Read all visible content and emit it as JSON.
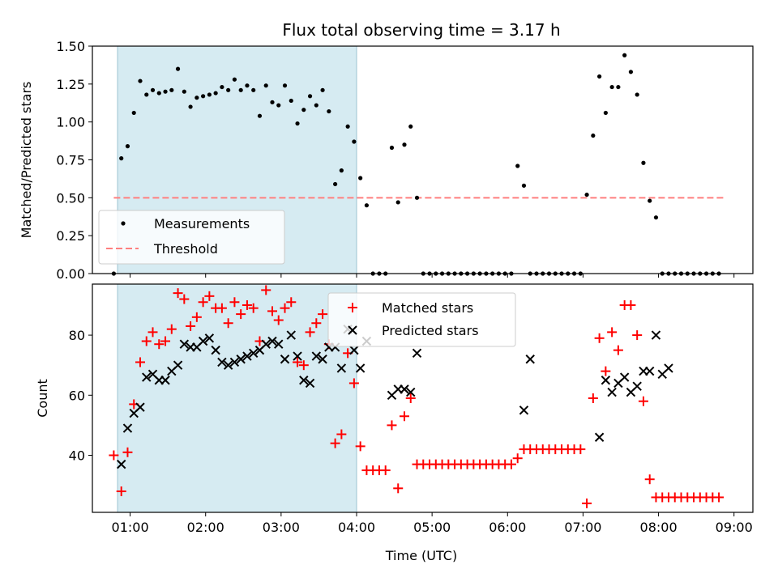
{
  "chart_data": [
    {
      "type": "scatter",
      "title": "Flux total observing time = 3.17 h",
      "ylabel": "Matched/Predicted stars",
      "xlim": [
        "00:30",
        "09:15"
      ],
      "ylim": [
        0,
        1.5
      ],
      "y_ticks": [
        "0.00",
        "0.25",
        "0.50",
        "0.75",
        "1.00",
        "1.25",
        "1.50"
      ],
      "shaded_interval": [
        "00:50",
        "04:00"
      ],
      "shade_color": "#add8e6",
      "legend": {
        "position": "lower-left",
        "entries": [
          "Measurements",
          "Threshold"
        ]
      },
      "threshold": {
        "name": "Threshold",
        "value": 0.5,
        "x": [
          "00:47",
          "08:52"
        ],
        "color": "#ff7f7f"
      },
      "series": [
        {
          "name": "Measurements",
          "color": "#000000",
          "x": [
            "00:47",
            "00:53",
            "00:58",
            "01:03",
            "01:08",
            "01:13",
            "01:18",
            "01:23",
            "01:28",
            "01:33",
            "01:38",
            "01:43",
            "01:48",
            "01:53",
            "01:58",
            "02:03",
            "02:08",
            "02:13",
            "02:18",
            "02:23",
            "02:28",
            "02:33",
            "02:38",
            "02:43",
            "02:48",
            "02:53",
            "02:58",
            "03:03",
            "03:08",
            "03:13",
            "03:18",
            "03:23",
            "03:28",
            "03:33",
            "03:38",
            "03:43",
            "03:48",
            "03:53",
            "03:58",
            "04:03",
            "04:08",
            "04:13",
            "04:18",
            "04:23",
            "04:28",
            "04:33",
            "04:38",
            "04:43",
            "04:48",
            "04:53",
            "04:58",
            "05:03",
            "05:08",
            "05:13",
            "05:18",
            "05:23",
            "05:28",
            "05:33",
            "05:38",
            "05:43",
            "05:48",
            "05:53",
            "05:58",
            "06:03",
            "06:08",
            "06:13",
            "06:18",
            "06:23",
            "06:28",
            "06:33",
            "06:38",
            "06:43",
            "06:48",
            "06:53",
            "06:58",
            "07:03",
            "07:08",
            "07:13",
            "07:18",
            "07:23",
            "07:28",
            "07:33",
            "07:38",
            "07:43",
            "07:48",
            "07:53",
            "07:58",
            "08:03",
            "08:08",
            "08:13",
            "08:18",
            "08:23",
            "08:28",
            "08:33",
            "08:38",
            "08:43",
            "08:48"
          ],
          "y": [
            0.0,
            0.76,
            0.84,
            1.06,
            1.27,
            1.18,
            1.21,
            1.19,
            1.2,
            1.21,
            1.35,
            1.2,
            1.1,
            1.16,
            1.17,
            1.18,
            1.19,
            1.23,
            1.21,
            1.28,
            1.21,
            1.24,
            1.21,
            1.04,
            1.24,
            1.13,
            1.11,
            1.24,
            1.14,
            0.99,
            1.08,
            1.17,
            1.11,
            1.21,
            1.07,
            0.59,
            0.68,
            0.97,
            0.87,
            0.63,
            0.45,
            0.0,
            0.0,
            0.0,
            0.83,
            0.47,
            0.85,
            0.97,
            0.5,
            0.0,
            0.0,
            0.0,
            0.0,
            0.0,
            0.0,
            0.0,
            0.0,
            0.0,
            0.0,
            0.0,
            0.0,
            0.0,
            0.0,
            0.0,
            0.71,
            0.58,
            0.0,
            0.0,
            0.0,
            0.0,
            0.0,
            0.0,
            0.0,
            0.0,
            0.0,
            0.52,
            0.91,
            1.3,
            1.06,
            1.23,
            1.23,
            1.44,
            1.33,
            1.18,
            0.73,
            0.48,
            0.37,
            0.0,
            0.0,
            0.0,
            0.0,
            0.0,
            0.0,
            0.0,
            0.0,
            0.0,
            0.0
          ]
        }
      ]
    },
    {
      "type": "scatter",
      "xlabel": "Time (UTC)",
      "ylabel": "Count",
      "xlim": [
        "00:30",
        "09:15"
      ],
      "ylim": [
        21,
        97
      ],
      "y_ticks": [
        "40",
        "60",
        "80"
      ],
      "x_ticks": [
        "01:00",
        "02:00",
        "03:00",
        "04:00",
        "05:00",
        "06:00",
        "07:00",
        "08:00",
        "09:00"
      ],
      "shaded_interval": [
        "00:50",
        "04:00"
      ],
      "shade_color": "#add8e6",
      "legend": {
        "position": "upper-center",
        "entries": [
          "Matched stars",
          "Predicted stars"
        ]
      },
      "series": [
        {
          "name": "Matched stars",
          "marker": "plus",
          "color": "#ff0000",
          "x": [
            "00:47",
            "00:53",
            "00:58",
            "01:03",
            "01:08",
            "01:13",
            "01:18",
            "01:23",
            "01:28",
            "01:33",
            "01:38",
            "01:43",
            "01:48",
            "01:53",
            "01:58",
            "02:03",
            "02:08",
            "02:13",
            "02:18",
            "02:23",
            "02:28",
            "02:33",
            "02:38",
            "02:43",
            "02:48",
            "02:53",
            "02:58",
            "03:03",
            "03:08",
            "03:13",
            "03:18",
            "03:23",
            "03:28",
            "03:33",
            "03:38",
            "03:43",
            "03:48",
            "03:53",
            "03:58",
            "04:03",
            "04:08",
            "04:13",
            "04:18",
            "04:23",
            "04:28",
            "04:33",
            "04:38",
            "04:43",
            "04:48",
            "04:53",
            "04:58",
            "05:03",
            "05:08",
            "05:13",
            "05:18",
            "05:23",
            "05:28",
            "05:33",
            "05:38",
            "05:43",
            "05:48",
            "05:53",
            "05:58",
            "06:03",
            "06:08",
            "06:13",
            "06:18",
            "06:23",
            "06:28",
            "06:33",
            "06:38",
            "06:43",
            "06:48",
            "06:53",
            "06:58",
            "07:03",
            "07:08",
            "07:13",
            "07:18",
            "07:23",
            "07:28",
            "07:33",
            "07:38",
            "07:43",
            "07:48",
            "07:53",
            "07:58",
            "08:03",
            "08:08",
            "08:13",
            "08:18",
            "08:23",
            "08:28",
            "08:33",
            "08:38",
            "08:43",
            "08:48"
          ],
          "y": [
            40,
            28,
            41,
            57,
            71,
            78,
            81,
            77,
            78,
            82,
            94,
            92,
            83,
            86,
            91,
            93,
            89,
            89,
            84,
            91,
            87,
            90,
            89,
            78,
            95,
            88,
            85,
            89,
            91,
            71,
            70,
            81,
            84,
            87,
            77,
            44,
            47,
            74,
            64,
            43,
            35,
            35,
            35,
            35,
            50,
            29,
            53,
            59,
            37,
            37,
            37,
            37,
            37,
            37,
            37,
            37,
            37,
            37,
            37,
            37,
            37,
            37,
            37,
            37,
            39,
            42,
            42,
            42,
            42,
            42,
            42,
            42,
            42,
            42,
            42,
            24,
            59,
            79,
            68,
            81,
            75,
            90,
            90,
            80,
            58,
            32,
            26,
            26,
            26,
            26,
            26,
            26,
            26,
            26,
            26,
            26,
            26
          ]
        },
        {
          "name": "Predicted stars",
          "marker": "x",
          "color": "#000000",
          "x": [
            "00:53",
            "00:58",
            "01:03",
            "01:08",
            "01:13",
            "01:18",
            "01:23",
            "01:28",
            "01:33",
            "01:38",
            "01:43",
            "01:48",
            "01:53",
            "01:58",
            "02:03",
            "02:08",
            "02:13",
            "02:18",
            "02:23",
            "02:28",
            "02:33",
            "02:38",
            "02:43",
            "02:48",
            "02:53",
            "02:58",
            "03:03",
            "03:08",
            "03:13",
            "03:18",
            "03:23",
            "03:28",
            "03:33",
            "03:38",
            "03:43",
            "03:48",
            "03:53",
            "03:58",
            "04:03",
            "04:08",
            "04:28",
            "04:33",
            "04:38",
            "04:43",
            "04:48",
            "06:13",
            "06:18",
            "07:13",
            "07:18",
            "07:23",
            "07:28",
            "07:33",
            "07:38",
            "07:43",
            "07:48",
            "07:53",
            "07:58",
            "08:03",
            "08:08"
          ],
          "y": [
            37,
            49,
            54,
            56,
            66,
            67,
            65,
            65,
            68,
            70,
            77,
            76,
            76,
            78,
            79,
            75,
            71,
            70,
            71,
            72,
            73,
            74,
            75,
            77,
            78,
            77,
            72,
            80,
            73,
            65,
            64,
            73,
            72,
            76,
            76,
            69,
            82,
            75,
            69,
            78,
            60,
            62,
            62,
            61,
            74,
            55,
            72,
            46,
            65,
            61,
            64,
            66,
            61,
            63,
            68,
            68,
            80,
            67,
            69
          ]
        }
      ]
    }
  ]
}
